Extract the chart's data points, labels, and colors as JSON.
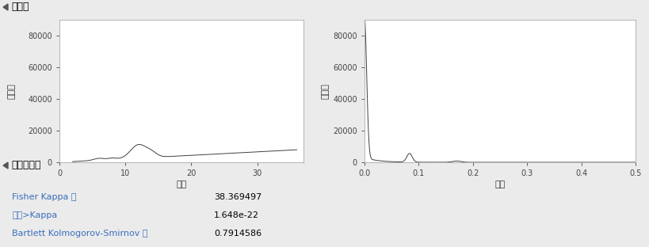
{
  "title_spectral": "谱密度",
  "title_noise": "白噪声检验",
  "ylabel_spectral": "谱密度",
  "xlabel_period": "周期",
  "xlabel_freq": "频数",
  "fisher_kappa_label": "Fisher Kappa 值",
  "fisher_kappa_value": "38.369497",
  "prob_label": "概率>Kappa",
  "prob_value": "1.648e-22",
  "bartlett_label": "Bartlett Kolmogorov-Smirnov 值",
  "bartlett_value": "0.7914586",
  "label_color": "#3a6ebd",
  "value_color": "#000000",
  "bg_color": "#ebebeb",
  "plot_bg": "#ffffff",
  "header_bg": "#c8c8c8",
  "line_color": "#404040",
  "period_xlim": [
    0,
    37
  ],
  "period_ylim": [
    0,
    90000
  ],
  "freq_xlim": [
    0,
    0.5
  ],
  "freq_ylim": [
    0,
    90000
  ],
  "period_yticks": [
    0,
    20000,
    40000,
    60000,
    80000
  ],
  "freq_yticks": [
    0,
    20000,
    40000,
    60000,
    80000
  ],
  "period_xticks": [
    0,
    10,
    20,
    30
  ],
  "freq_xticks": [
    0.0,
    0.1,
    0.2,
    0.3,
    0.4,
    0.5
  ]
}
